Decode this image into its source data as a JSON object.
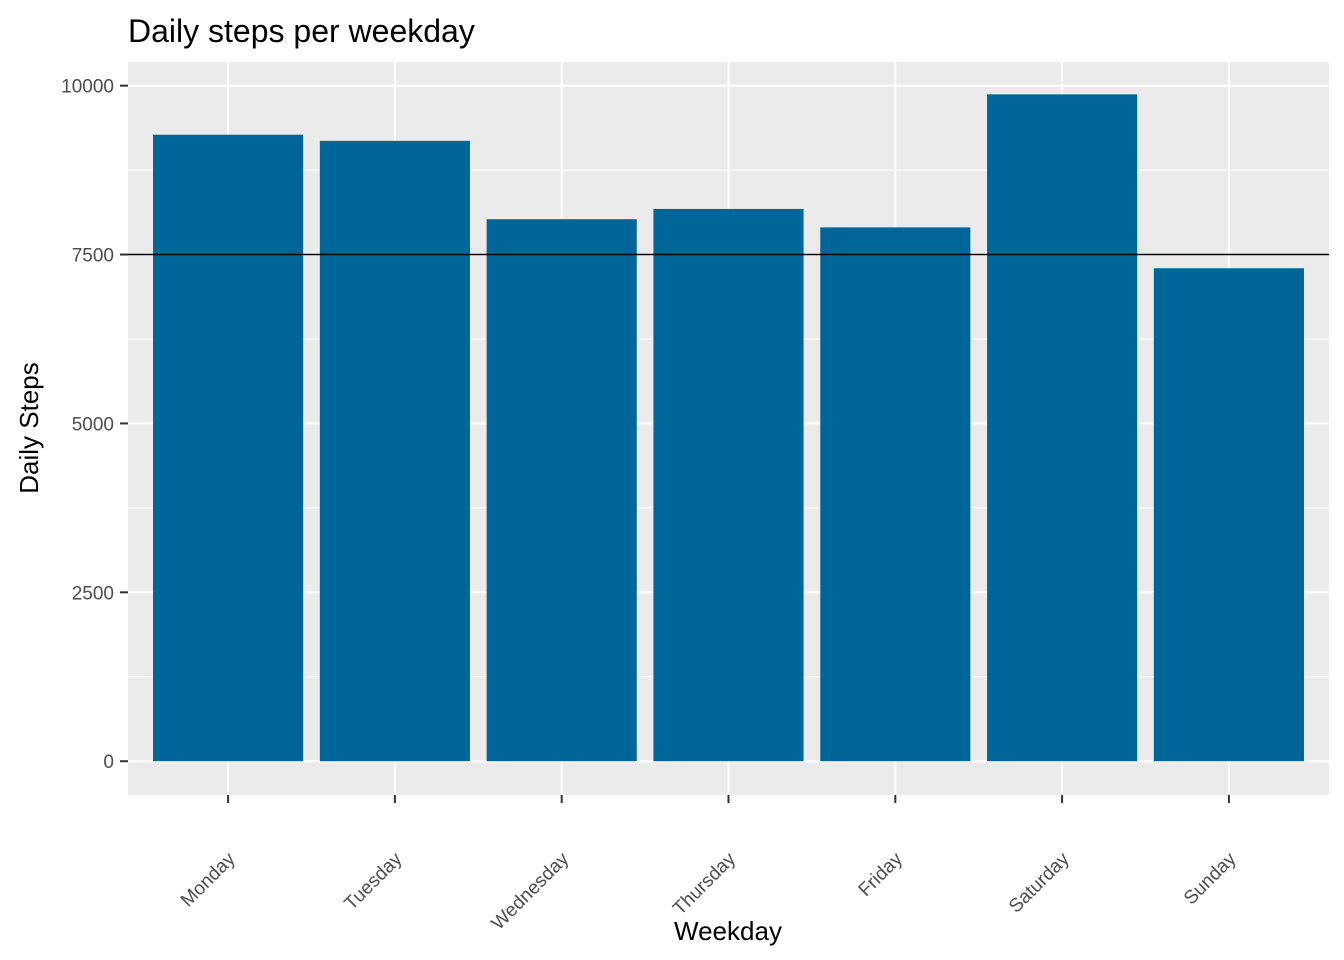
{
  "chart_data": {
    "type": "bar",
    "title": "Daily steps per weekday",
    "xlabel": "Weekday",
    "ylabel": "Daily Steps",
    "categories": [
      "Monday",
      "Tuesday",
      "Wednesday",
      "Thursday",
      "Friday",
      "Saturday",
      "Sunday"
    ],
    "values": [
      9274,
      9183,
      8023,
      8175,
      7902,
      9871,
      7297
    ],
    "ylim": [
      -500,
      10350
    ],
    "yticks": [
      0,
      2500,
      5000,
      7500,
      10000
    ],
    "ytick_labels": [
      "0",
      "2500",
      "5000",
      "7500",
      "10000"
    ],
    "reference_line": {
      "y": 7500,
      "color": "#000000"
    },
    "grid": true,
    "legend": "none",
    "colors": {
      "bar": "#006699",
      "panel": "#EBEBEB",
      "grid": "#FFFFFF"
    }
  }
}
